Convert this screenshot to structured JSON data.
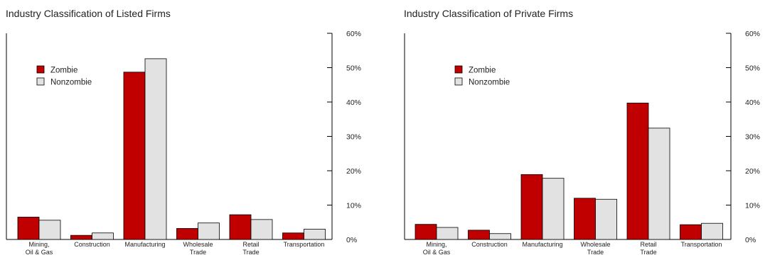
{
  "chart_data": [
    {
      "type": "bar",
      "title": "Industry Classification of Listed Firms",
      "categories": [
        [
          "Mining,",
          "Oil & Gas"
        ],
        [
          "Construction"
        ],
        [
          "Manufacturing"
        ],
        [
          "Wholesale",
          "Trade"
        ],
        [
          "Retail",
          "Trade"
        ],
        [
          "Transportation"
        ]
      ],
      "series": [
        {
          "name": "Zombie",
          "color": "#c00000",
          "values": [
            6.5,
            1.2,
            48.7,
            3.2,
            7.2,
            1.9
          ]
        },
        {
          "name": "Nonzombie",
          "color": "#e2e2e2",
          "values": [
            5.6,
            1.9,
            52.6,
            4.8,
            5.8,
            3.0
          ]
        }
      ],
      "yticks": [
        "0%",
        "10%",
        "20%",
        "30%",
        "40%",
        "50%",
        "60%"
      ],
      "ylim": [
        0,
        60
      ],
      "y_axis_side": "right",
      "legend_position": "top-left",
      "grid": false
    },
    {
      "type": "bar",
      "title": "Industry Classification of Private Firms",
      "categories": [
        [
          "Mining,",
          "Oil & Gas"
        ],
        [
          "Construction"
        ],
        [
          "Manufacturing"
        ],
        [
          "Wholesale",
          "Trade"
        ],
        [
          "Retail",
          "Trade"
        ],
        [
          "Transportation"
        ]
      ],
      "series": [
        {
          "name": "Zombie",
          "color": "#c00000",
          "values": [
            4.4,
            2.7,
            18.9,
            12.0,
            39.7,
            4.3
          ]
        },
        {
          "name": "Nonzombie",
          "color": "#e2e2e2",
          "values": [
            3.5,
            1.7,
            17.8,
            11.7,
            32.4,
            4.7
          ]
        }
      ],
      "yticks": [
        "0%",
        "10%",
        "20%",
        "30%",
        "40%",
        "50%",
        "60%"
      ],
      "ylim": [
        0,
        60
      ],
      "y_axis_side": "right",
      "legend_position": "top-left",
      "grid": false
    }
  ]
}
